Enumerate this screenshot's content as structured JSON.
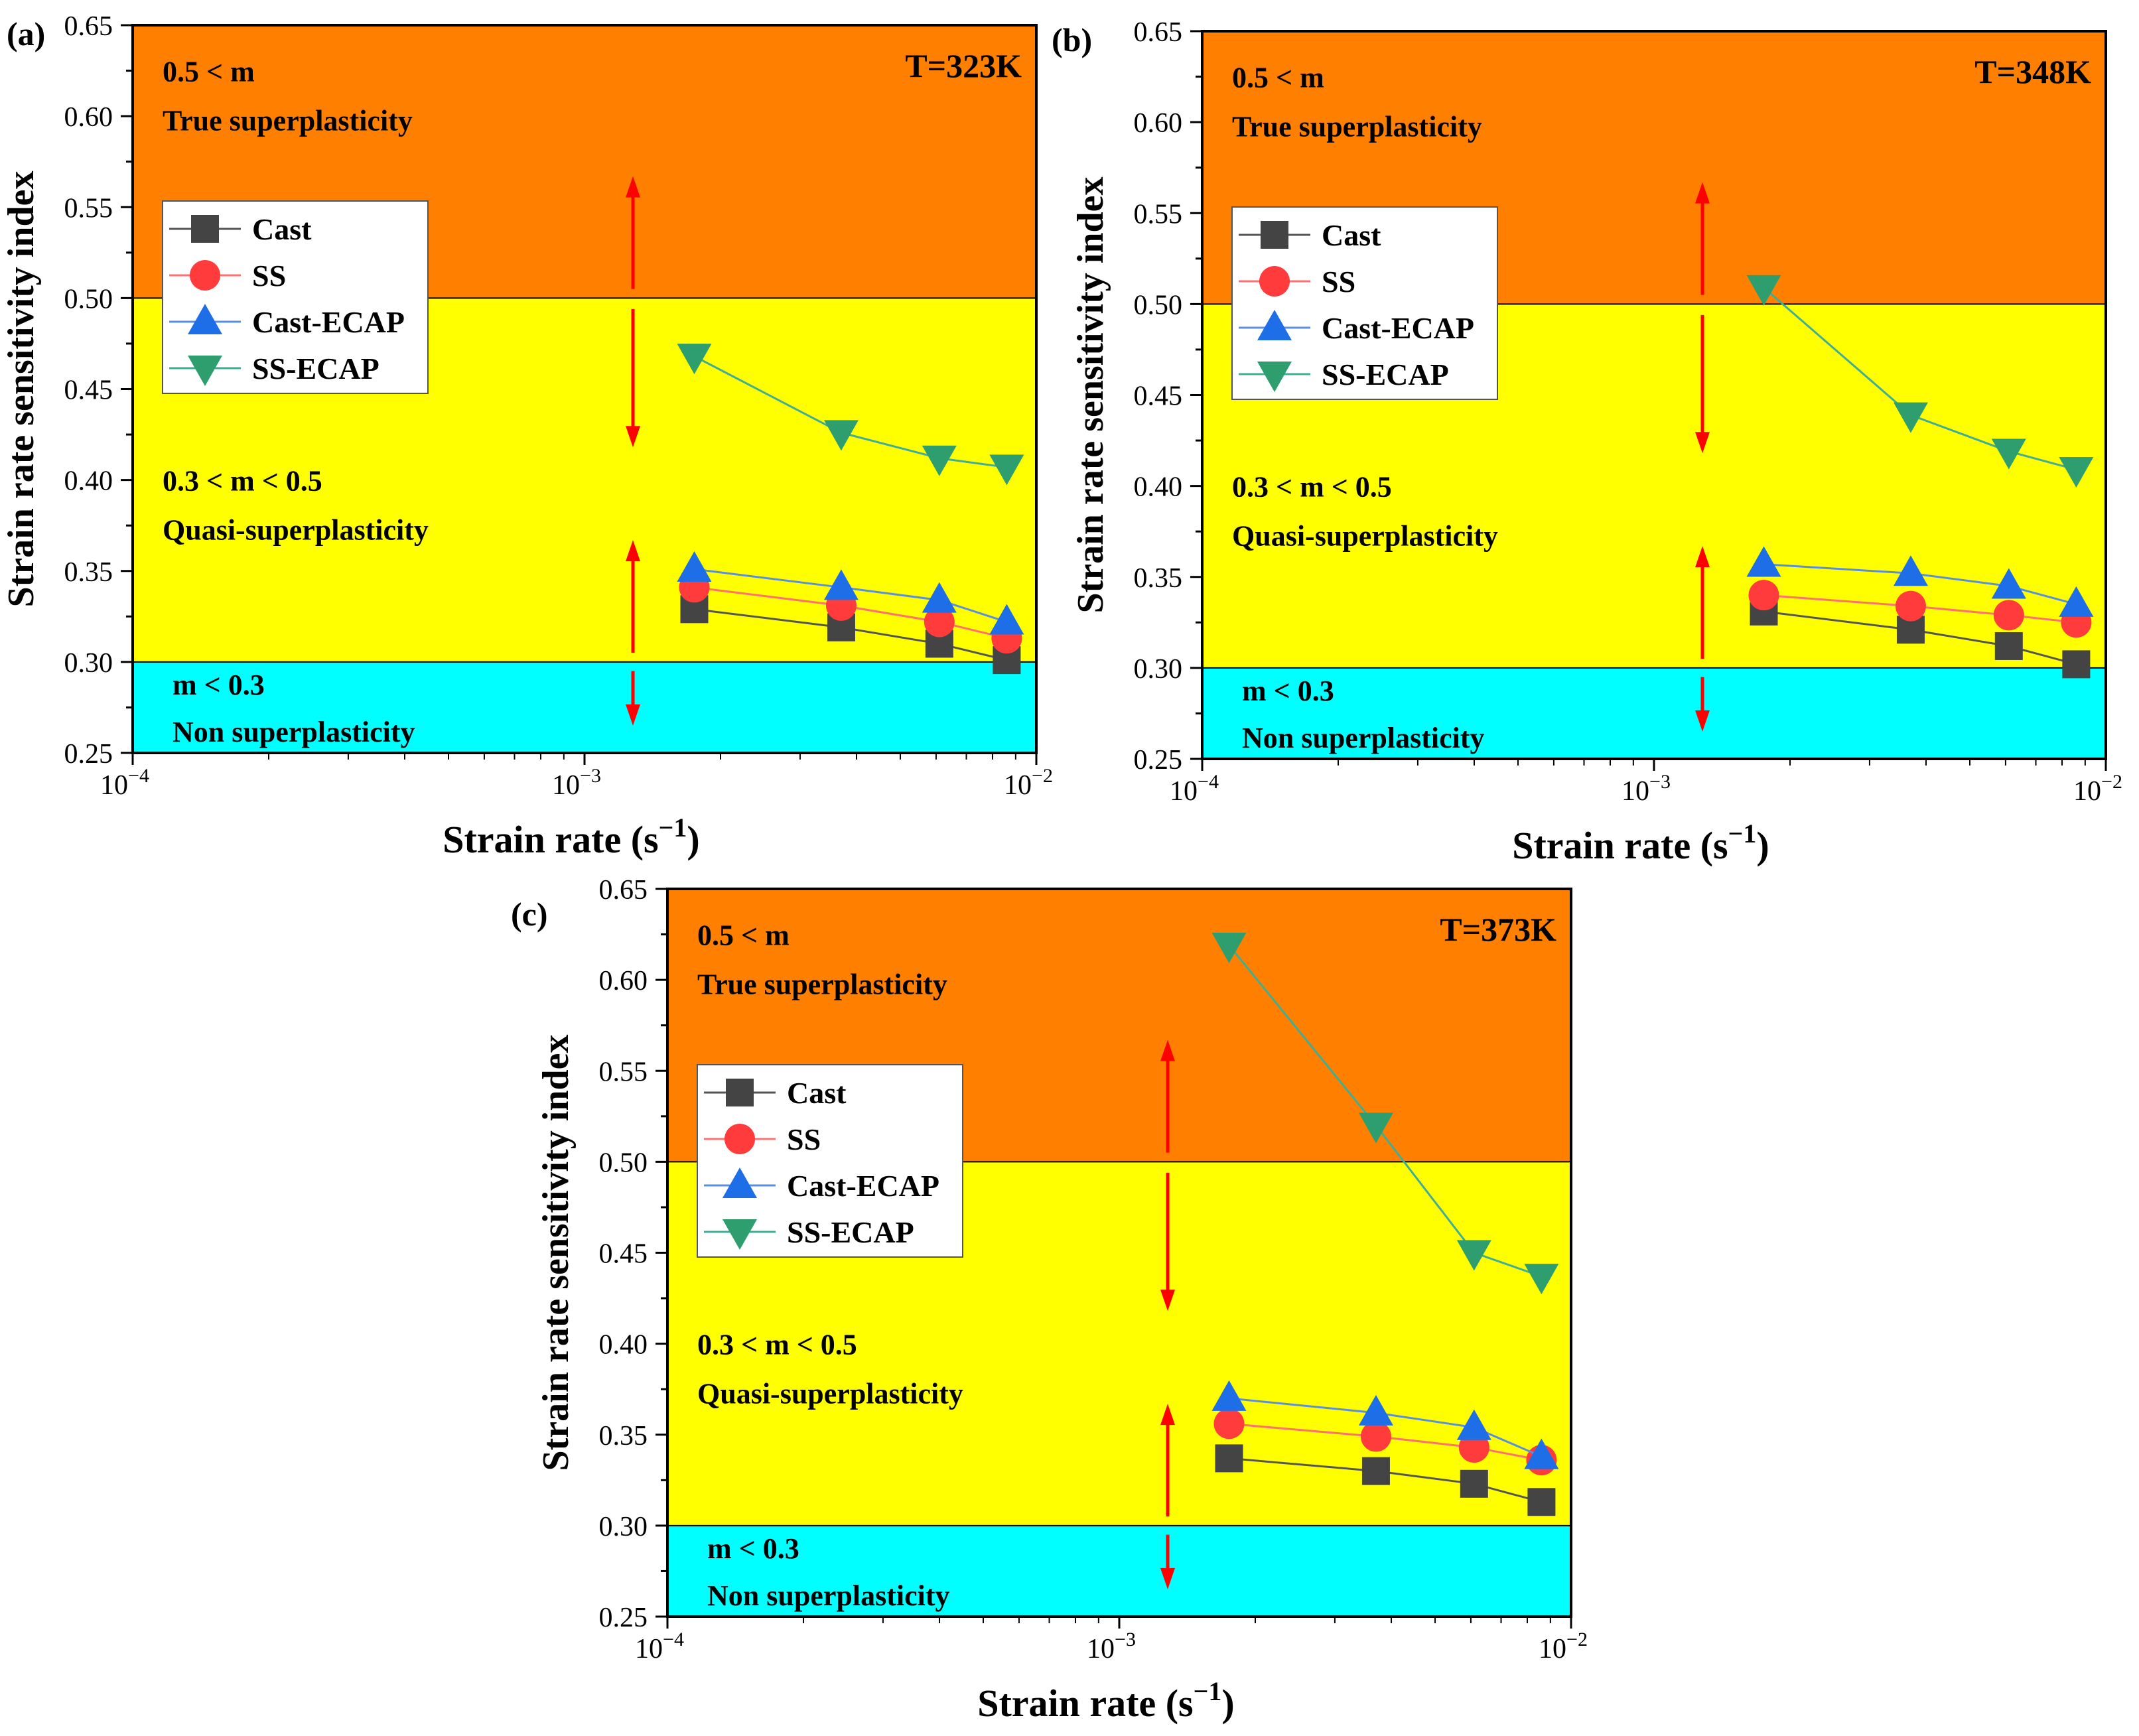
{
  "chart_data": [
    {
      "type": "line",
      "panel_label": "(a)",
      "temperature": "T=323K",
      "xlabel": "Strain rate",
      "xlabel_unit": "s",
      "xlabel_exponent": "−1",
      "ylabel": "Strain rate sensitivity index",
      "xscale": "log",
      "xlim": [
        0.0001,
        0.01
      ],
      "ylim": [
        0.25,
        0.65
      ],
      "y_ticks": [
        "0.25",
        "0.30",
        "0.35",
        "0.40",
        "0.45",
        "0.50",
        "0.55",
        "0.60",
        "0.65"
      ],
      "x_ticks": [
        {
          "value": 0.0001,
          "base": "10",
          "exp": "−4"
        },
        {
          "value": 0.001,
          "base": "10",
          "exp": "−3"
        },
        {
          "value": 0.01,
          "base": "10",
          "exp": "−2"
        }
      ],
      "regions": [
        {
          "from": 0.5,
          "to": 0.65,
          "color": "#ff8000",
          "line1": "0.5 < m",
          "line2": "True superplasticity"
        },
        {
          "from": 0.3,
          "to": 0.5,
          "color": "#ffff00",
          "line1": "0.3 < m < 0.5",
          "line2": "Quasi-superplasticity"
        },
        {
          "from": 0.25,
          "to": 0.3,
          "color": "#00ffff",
          "line1": "m < 0.3",
          "line2": "Non superplasticity"
        }
      ],
      "arrow_x": 0.00128,
      "legend": "upper-left",
      "series": [
        {
          "name": "Cast",
          "marker": "square",
          "color": "#444444",
          "line_color": "#555555",
          "x": [
            0.00175,
            0.0037,
            0.0061,
            0.0086
          ],
          "y": [
            0.329,
            0.319,
            0.31,
            0.301
          ]
        },
        {
          "name": "SS",
          "marker": "circle",
          "color": "#ff3b3b",
          "line_color": "#ff7070",
          "x": [
            0.00175,
            0.0037,
            0.0061,
            0.0086
          ],
          "y": [
            0.341,
            0.331,
            0.322,
            0.313
          ]
        },
        {
          "name": "Cast-ECAP",
          "marker": "triangle-up",
          "color": "#1e6ee8",
          "line_color": "#5a8fe0",
          "x": [
            0.00175,
            0.0037,
            0.0061,
            0.0086
          ],
          "y": [
            0.351,
            0.341,
            0.334,
            0.322
          ]
        },
        {
          "name": "SS-ECAP",
          "marker": "triangle-down",
          "color": "#2e9e6e",
          "line_color": "#3fae95",
          "x": [
            0.00175,
            0.0037,
            0.0061,
            0.0086
          ],
          "y": [
            0.468,
            0.426,
            0.412,
            0.407
          ]
        }
      ]
    },
    {
      "type": "line",
      "panel_label": "(b)",
      "temperature": "T=348K",
      "xlabel": "Strain rate",
      "xlabel_unit": "s",
      "xlabel_exponent": "−1",
      "ylabel": "Strain rate sensitivity index",
      "xscale": "log",
      "xlim": [
        0.0001,
        0.01
      ],
      "ylim": [
        0.25,
        0.65
      ],
      "y_ticks": [
        "0.25",
        "0.30",
        "0.35",
        "0.40",
        "0.45",
        "0.50",
        "0.55",
        "0.60",
        "0.65"
      ],
      "x_ticks": [
        {
          "value": 0.0001,
          "base": "10",
          "exp": "−4"
        },
        {
          "value": 0.001,
          "base": "10",
          "exp": "−3"
        },
        {
          "value": 0.01,
          "base": "10",
          "exp": "−2"
        }
      ],
      "regions": [
        {
          "from": 0.5,
          "to": 0.65,
          "color": "#ff8000",
          "line1": "0.5 < m",
          "line2": "True superplasticity"
        },
        {
          "from": 0.3,
          "to": 0.5,
          "color": "#ffff00",
          "line1": "0.3 < m < 0.5",
          "line2": "Quasi-superplasticity"
        },
        {
          "from": 0.25,
          "to": 0.3,
          "color": "#00ffff",
          "line1": "m < 0.3",
          "line2": "Non superplasticity"
        }
      ],
      "arrow_x": 0.00128,
      "legend": "upper-left",
      "series": [
        {
          "name": "Cast",
          "marker": "square",
          "color": "#444444",
          "line_color": "#555555",
          "x": [
            0.00175,
            0.0037,
            0.0061,
            0.0086
          ],
          "y": [
            0.331,
            0.321,
            0.312,
            0.302
          ]
        },
        {
          "name": "SS",
          "marker": "circle",
          "color": "#ff3b3b",
          "line_color": "#ff7070",
          "x": [
            0.00175,
            0.0037,
            0.0061,
            0.0086
          ],
          "y": [
            0.34,
            0.334,
            0.329,
            0.325
          ]
        },
        {
          "name": "Cast-ECAP",
          "marker": "triangle-up",
          "color": "#1e6ee8",
          "line_color": "#5a8fe0",
          "x": [
            0.00175,
            0.0037,
            0.0061,
            0.0086
          ],
          "y": [
            0.357,
            0.352,
            0.345,
            0.335
          ]
        },
        {
          "name": "SS-ECAP",
          "marker": "triangle-down",
          "color": "#2e9e6e",
          "line_color": "#3fae95",
          "x": [
            0.00175,
            0.0037,
            0.0061,
            0.0086
          ],
          "y": [
            0.509,
            0.439,
            0.419,
            0.409
          ]
        }
      ]
    },
    {
      "type": "line",
      "panel_label": "(c)",
      "temperature": "T=373K",
      "xlabel": "Strain rate",
      "xlabel_unit": "s",
      "xlabel_exponent": "−1",
      "ylabel": "Strain rate sensitivity index",
      "xscale": "log",
      "xlim": [
        0.0001,
        0.01
      ],
      "ylim": [
        0.25,
        0.65
      ],
      "y_ticks": [
        "0.25",
        "0.30",
        "0.35",
        "0.40",
        "0.45",
        "0.50",
        "0.55",
        "0.60",
        "0.65"
      ],
      "x_ticks": [
        {
          "value": 0.0001,
          "base": "10",
          "exp": "−4"
        },
        {
          "value": 0.001,
          "base": "10",
          "exp": "−3"
        },
        {
          "value": 0.01,
          "base": "10",
          "exp": "−2"
        }
      ],
      "regions": [
        {
          "from": 0.5,
          "to": 0.65,
          "color": "#ff8000",
          "line1": "0.5 < m",
          "line2": "True superplasticity"
        },
        {
          "from": 0.3,
          "to": 0.5,
          "color": "#ffff00",
          "line1": "0.3 < m < 0.5",
          "line2": "Quasi-superplasticity"
        },
        {
          "from": 0.25,
          "to": 0.3,
          "color": "#00ffff",
          "line1": "m < 0.3",
          "line2": "Non superplasticity"
        }
      ],
      "arrow_x": 0.00128,
      "legend": "upper-left",
      "series": [
        {
          "name": "Cast",
          "marker": "square",
          "color": "#444444",
          "line_color": "#555555",
          "x": [
            0.00175,
            0.0037,
            0.0061,
            0.0086
          ],
          "y": [
            0.337,
            0.33,
            0.323,
            0.313
          ]
        },
        {
          "name": "SS",
          "marker": "circle",
          "color": "#ff3b3b",
          "line_color": "#ff7070",
          "x": [
            0.00175,
            0.0037,
            0.0061,
            0.0086
          ],
          "y": [
            0.356,
            0.349,
            0.343,
            0.336
          ]
        },
        {
          "name": "Cast-ECAP",
          "marker": "triangle-up",
          "color": "#1e6ee8",
          "line_color": "#5a8fe0",
          "x": [
            0.00175,
            0.0037,
            0.0061,
            0.0086
          ],
          "y": [
            0.37,
            0.362,
            0.354,
            0.338
          ]
        },
        {
          "name": "SS-ECAP",
          "marker": "triangle-down",
          "color": "#2e9e6e",
          "line_color": "#3fae95",
          "x": [
            0.00175,
            0.0037,
            0.0061,
            0.0086
          ],
          "y": [
            0.619,
            0.52,
            0.45,
            0.437
          ]
        }
      ]
    }
  ]
}
